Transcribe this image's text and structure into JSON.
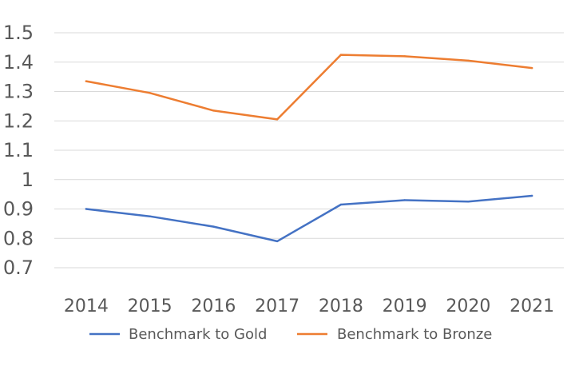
{
  "chart_data": {
    "type": "line",
    "x": [
      "2014",
      "2015",
      "2016",
      "2017",
      "2018",
      "2019",
      "2020",
      "2021"
    ],
    "ylim": [
      0.7,
      1.5
    ],
    "yticks": [
      "0.7",
      "0.8",
      "0.9",
      "1",
      "1.1",
      "1.2",
      "1.3",
      "1.4",
      "1.5"
    ],
    "grid": true,
    "legend_position": "bottom",
    "series": [
      {
        "name": "Benchmark to Gold",
        "color": "#4472C4",
        "values": [
          0.9,
          0.875,
          0.84,
          0.79,
          0.915,
          0.93,
          0.925,
          0.945
        ]
      },
      {
        "name": "Benchmark to Bronze",
        "color": "#ED7D31",
        "values": [
          1.335,
          1.295,
          1.235,
          1.205,
          1.425,
          1.42,
          1.405,
          1.38
        ]
      }
    ]
  }
}
